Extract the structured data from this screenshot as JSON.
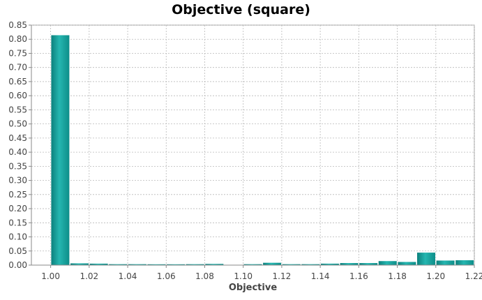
{
  "chart_data": {
    "type": "bar",
    "title": "Objective (square)",
    "xlabel": "Objective",
    "ylabel": "",
    "xlim": [
      0.99,
      1.22
    ],
    "ylim": [
      0,
      0.85
    ],
    "x_ticks": [
      "1.00",
      "1.02",
      "1.04",
      "1.06",
      "1.08",
      "1.10",
      "1.12",
      "1.14",
      "1.16",
      "1.18",
      "1.20",
      "1.22"
    ],
    "y_ticks": [
      "0.00",
      "0.05",
      "0.10",
      "0.15",
      "0.20",
      "0.25",
      "0.30",
      "0.35",
      "0.40",
      "0.45",
      "0.50",
      "0.55",
      "0.60",
      "0.65",
      "0.70",
      "0.75",
      "0.80",
      "0.85"
    ],
    "grid": true,
    "bar_color": "#1ea8a4",
    "bars": [
      {
        "x0": 1.0,
        "x1": 1.01,
        "value": 0.815
      },
      {
        "x0": 1.01,
        "x1": 1.02,
        "value": 0.007
      },
      {
        "x0": 1.02,
        "x1": 1.03,
        "value": 0.006
      },
      {
        "x0": 1.03,
        "x1": 1.04,
        "value": 0.004
      },
      {
        "x0": 1.04,
        "x1": 1.05,
        "value": 0.004
      },
      {
        "x0": 1.05,
        "x1": 1.06,
        "value": 0.003
      },
      {
        "x0": 1.06,
        "x1": 1.07,
        "value": 0.003
      },
      {
        "x0": 1.07,
        "x1": 1.08,
        "value": 0.004
      },
      {
        "x0": 1.08,
        "x1": 1.09,
        "value": 0.005
      },
      {
        "x0": 1.1,
        "x1": 1.11,
        "value": 0.004
      },
      {
        "x0": 1.11,
        "x1": 1.12,
        "value": 0.009
      },
      {
        "x0": 1.12,
        "x1": 1.13,
        "value": 0.004
      },
      {
        "x0": 1.13,
        "x1": 1.14,
        "value": 0.004
      },
      {
        "x0": 1.14,
        "x1": 1.15,
        "value": 0.006
      },
      {
        "x0": 1.15,
        "x1": 1.16,
        "value": 0.008
      },
      {
        "x0": 1.16,
        "x1": 1.17,
        "value": 0.008
      },
      {
        "x0": 1.17,
        "x1": 1.18,
        "value": 0.015
      },
      {
        "x0": 1.18,
        "x1": 1.19,
        "value": 0.012
      },
      {
        "x0": 1.19,
        "x1": 1.2,
        "value": 0.045
      },
      {
        "x0": 1.2,
        "x1": 1.21,
        "value": 0.017
      },
      {
        "x0": 1.21,
        "x1": 1.22,
        "value": 0.018
      }
    ]
  }
}
